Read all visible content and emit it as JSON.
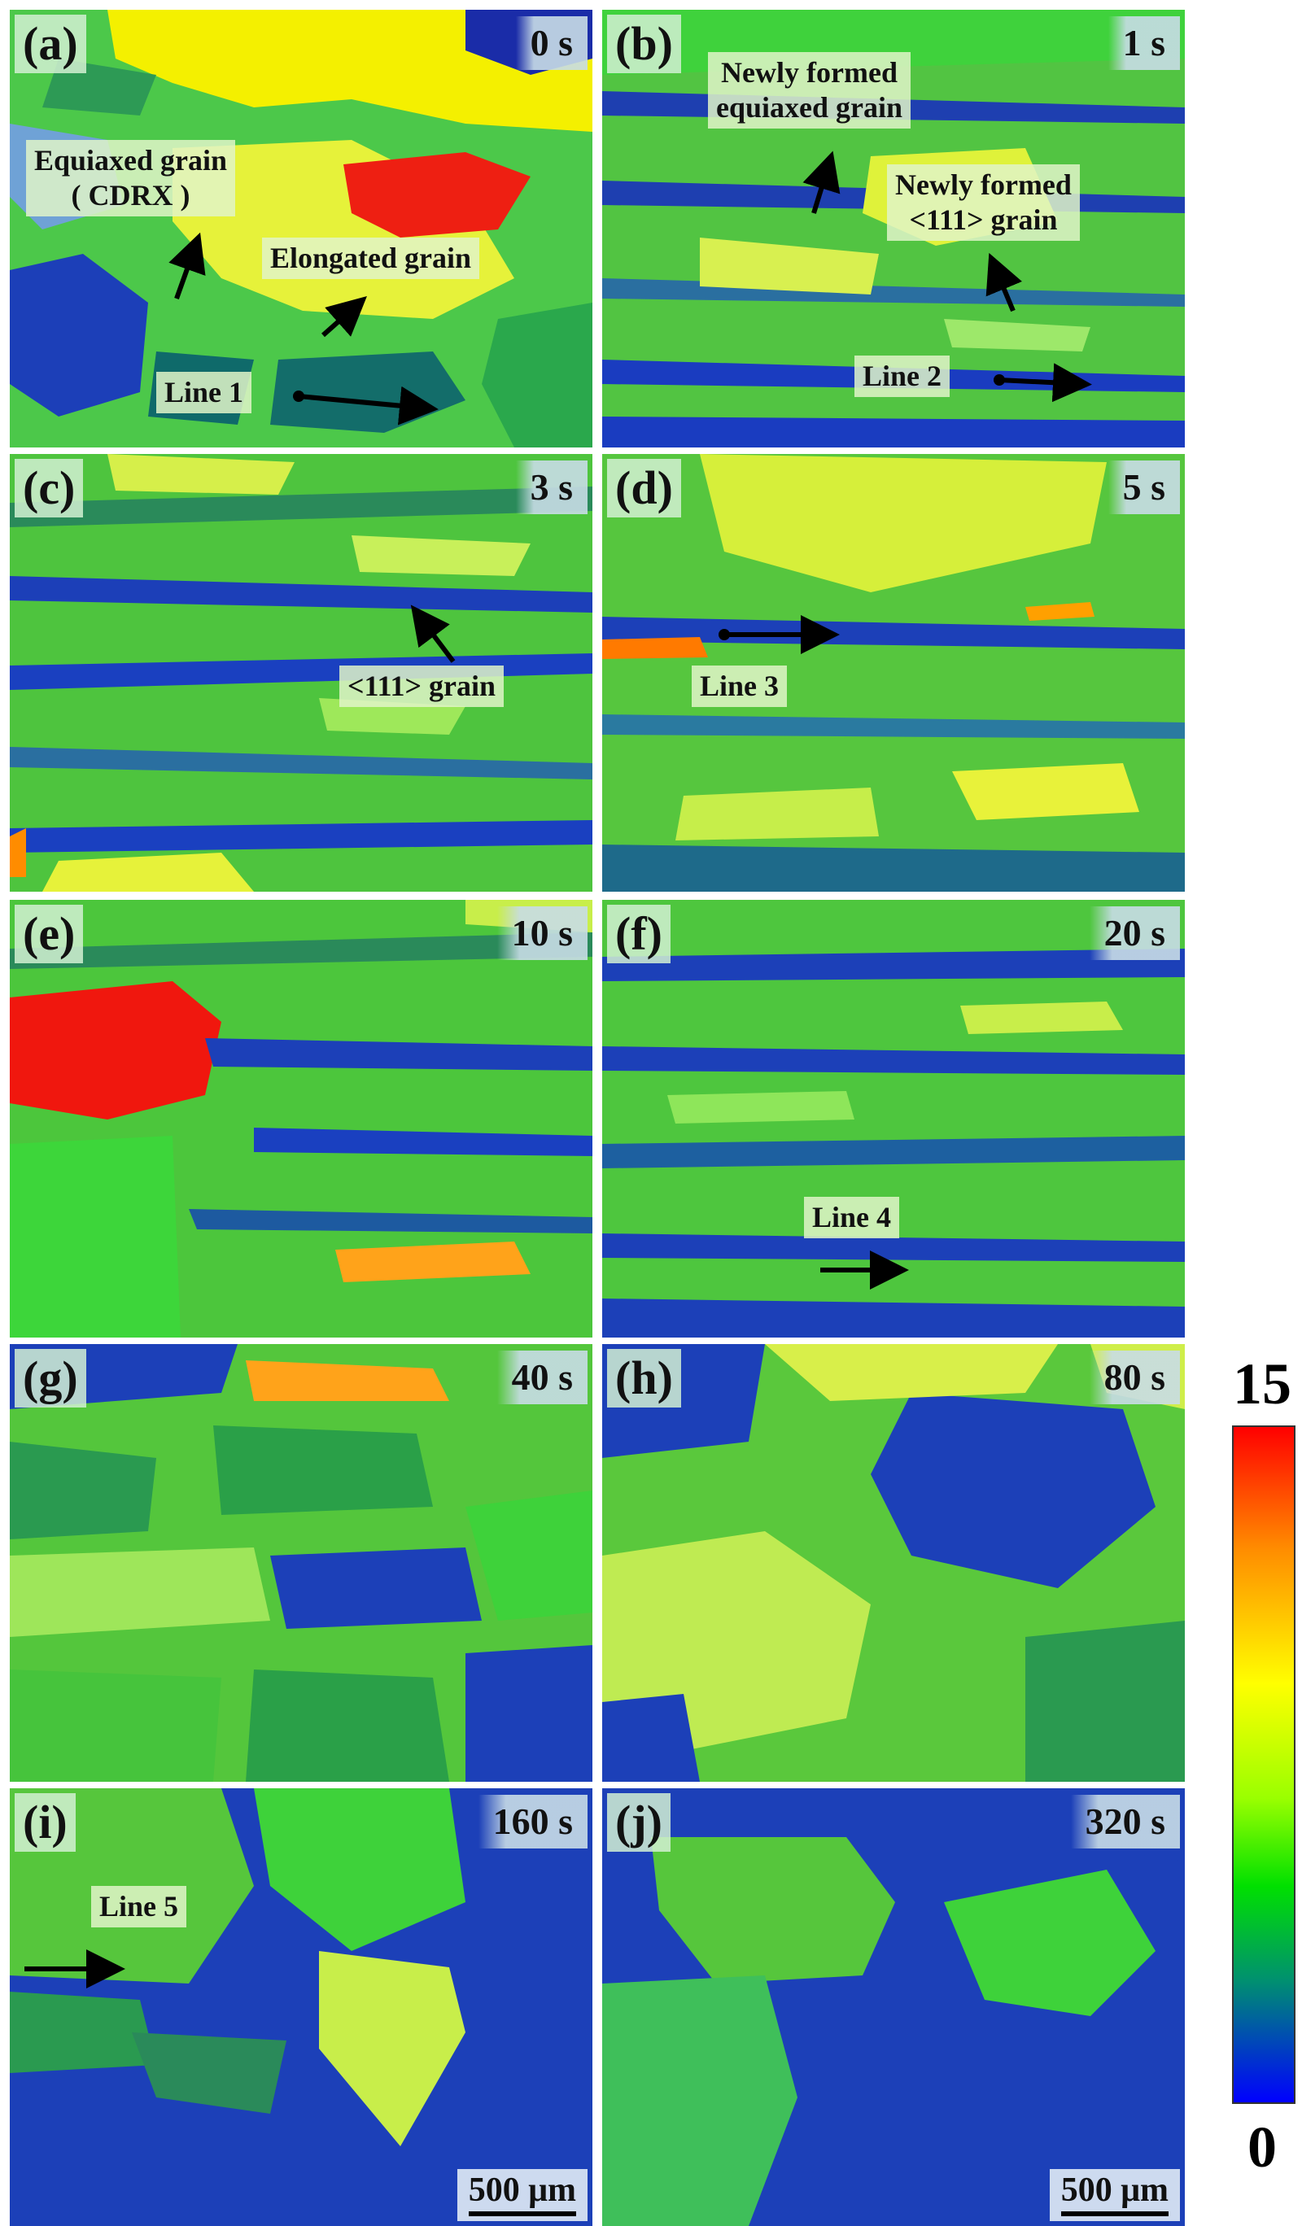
{
  "panels": [
    {
      "tag": "(a)",
      "time": "0 s",
      "notes": [
        "Equiaxed grain\n( CDRX )",
        "Elongated grain",
        "Line 1"
      ]
    },
    {
      "tag": "(b)",
      "time": "1 s",
      "notes": [
        "Newly formed\nequiaxed grain",
        "Newly formed\n<111> grain",
        "Line 2"
      ]
    },
    {
      "tag": "(c)",
      "time": "3 s",
      "notes": [
        "<111> grain"
      ]
    },
    {
      "tag": "(d)",
      "time": "5 s",
      "notes": [
        "Line 3"
      ]
    },
    {
      "tag": "(e)",
      "time": "10 s",
      "notes": []
    },
    {
      "tag": "(f)",
      "time": "20 s",
      "notes": [
        "Line 4"
      ]
    },
    {
      "tag": "(g)",
      "time": "40 s",
      "notes": []
    },
    {
      "tag": "(h)",
      "time": "80 s",
      "notes": []
    },
    {
      "tag": "(i)",
      "time": "160 s",
      "notes": [
        "Line 5"
      ],
      "scale": "500 μm"
    },
    {
      "tag": "(j)",
      "time": "320 s",
      "notes": [],
      "scale": "500 μm"
    }
  ],
  "colorbar": {
    "max": "15",
    "min": "0",
    "colors": [
      "#ff0000",
      "#ff8c00",
      "#ffff00",
      "#9aff00",
      "#00e000",
      "#009070",
      "#0000ff"
    ]
  }
}
